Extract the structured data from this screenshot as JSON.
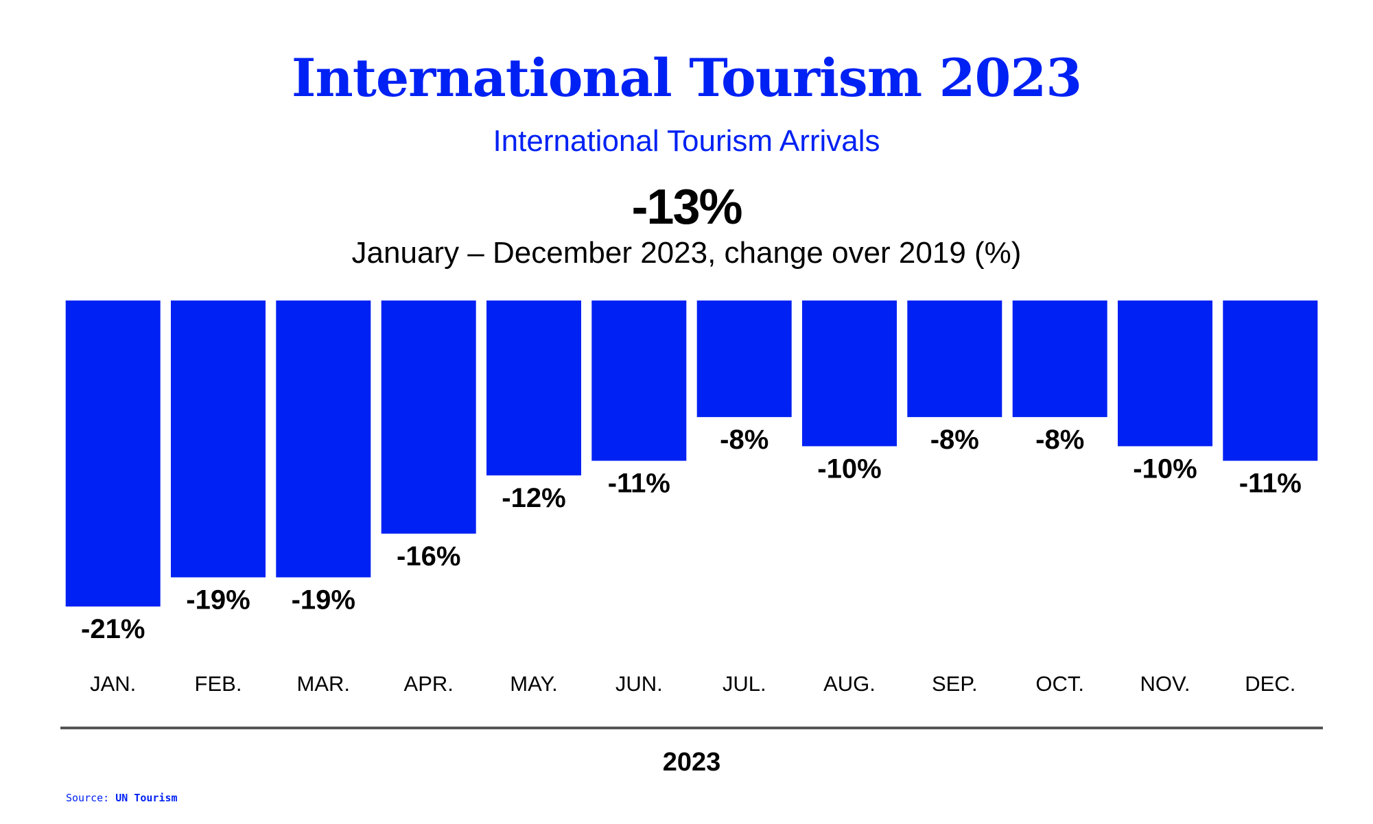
{
  "header": {
    "title": "International Tourism 2023",
    "subtitle": "International Tourism Arrivals",
    "headline_value": "-13%",
    "period": "January – December 2023, change over 2019 (%)"
  },
  "colors": {
    "bar": "#0021f3",
    "text": "#000000",
    "axis_line": "#555555"
  },
  "chart_data": {
    "type": "bar",
    "title": "International Tourism 2023",
    "subtitle": "International Tourism Arrivals",
    "xlabel": "2023",
    "ylabel": "",
    "categories": [
      "JAN.",
      "FEB.",
      "MAR.",
      "APR.",
      "MAY.",
      "JUN.",
      "JUL.",
      "AUG.",
      "SEP.",
      "OCT.",
      "NOV.",
      "DEC."
    ],
    "values": [
      -21,
      -19,
      -19,
      -16,
      -12,
      -11,
      -8,
      -10,
      -8,
      -8,
      -10,
      -11
    ],
    "value_labels": [
      "-21%",
      "-19%",
      "-19%",
      "-16%",
      "-12%",
      "-11%",
      "-8%",
      "-10%",
      "-8%",
      "-8%",
      "-10%",
      "-11%"
    ],
    "ylim": [
      -21,
      0
    ],
    "grid": false,
    "legend": "none"
  },
  "source": {
    "prefix": "Source:",
    "name": "UN Tourism"
  }
}
